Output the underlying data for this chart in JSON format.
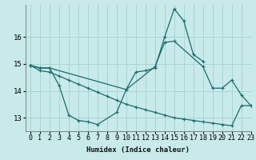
{
  "xlabel": "Humidex (Indice chaleur)",
  "background_color": "#c8eaea",
  "grid_color": "#aad4d4",
  "line_color": "#1a6b6b",
  "ylim": [
    12.5,
    17.2
  ],
  "xlim": [
    -0.5,
    23
  ],
  "yticks": [
    13,
    14,
    15,
    16
  ],
  "xticks": [
    0,
    1,
    2,
    3,
    4,
    5,
    6,
    7,
    8,
    9,
    10,
    11,
    12,
    13,
    14,
    15,
    16,
    17,
    18,
    19,
    20,
    21,
    22,
    23
  ],
  "line1_x": [
    0,
    1,
    2,
    3,
    4,
    5,
    6,
    7,
    9,
    10,
    11,
    12,
    13,
    14,
    15,
    16,
    17,
    18
  ],
  "line1_y": [
    14.95,
    14.85,
    14.85,
    14.2,
    13.1,
    12.9,
    12.85,
    12.75,
    13.2,
    14.05,
    14.7,
    14.75,
    14.85,
    16.0,
    17.05,
    16.6,
    15.35,
    15.1
  ],
  "line2_x": [
    0,
    1,
    2,
    10,
    13,
    14,
    15,
    18,
    19,
    20,
    21,
    22,
    23
  ],
  "line2_y": [
    14.95,
    14.85,
    14.85,
    14.05,
    14.9,
    15.8,
    15.85,
    14.9,
    14.1,
    14.1,
    14.4,
    13.85,
    13.45
  ],
  "line3_x": [
    0,
    1,
    2,
    3,
    4,
    5,
    6,
    7,
    8,
    9,
    10,
    11,
    12,
    13,
    14,
    15,
    16,
    17,
    18,
    19,
    20,
    21,
    22,
    23
  ],
  "line3_y": [
    14.95,
    14.75,
    14.7,
    14.55,
    14.4,
    14.25,
    14.1,
    13.95,
    13.8,
    13.65,
    13.5,
    13.4,
    13.3,
    13.2,
    13.1,
    13.0,
    12.95,
    12.9,
    12.85,
    12.8,
    12.75,
    12.7,
    13.45,
    13.45
  ]
}
